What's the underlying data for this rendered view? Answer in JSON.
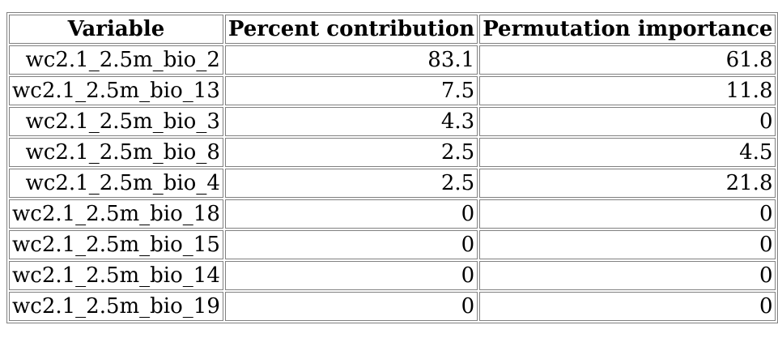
{
  "table": {
    "headers": [
      "Variable",
      "Percent contribution",
      "Permutation importance"
    ],
    "rows": [
      [
        "wc2.1_2.5m_bio_2",
        "83.1",
        "61.8"
      ],
      [
        "wc2.1_2.5m_bio_13",
        "7.5",
        "11.8"
      ],
      [
        "wc2.1_2.5m_bio_3",
        "4.3",
        "0"
      ],
      [
        "wc2.1_2.5m_bio_8",
        "2.5",
        "4.5"
      ],
      [
        "wc2.1_2.5m_bio_4",
        "2.5",
        "21.8"
      ],
      [
        "wc2.1_2.5m_bio_18",
        "0",
        "0"
      ],
      [
        "wc2.1_2.5m_bio_15",
        "0",
        "0"
      ],
      [
        "wc2.1_2.5m_bio_14",
        "0",
        "0"
      ],
      [
        "wc2.1_2.5m_bio_19",
        "0",
        "0"
      ]
    ]
  }
}
